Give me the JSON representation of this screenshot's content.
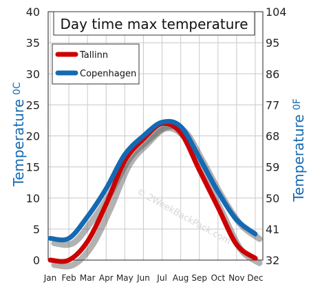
{
  "chart_data": {
    "type": "line",
    "title": "Day time max temperature",
    "categories": [
      "Jan",
      "Feb",
      "Mar",
      "Apr",
      "May",
      "Jun",
      "Jul",
      "Aug",
      "Sep",
      "Oct",
      "Nov",
      "Dec"
    ],
    "ylabel": "Temperature",
    "ylabel_unit": "0C",
    "y2label": "Temperature",
    "y2label_unit": "0F",
    "ylim": [
      0,
      40
    ],
    "y_ticks": [
      "0",
      "5",
      "10",
      "15",
      "20",
      "25",
      "30",
      "35",
      "40"
    ],
    "y2lim": [
      32,
      104
    ],
    "y2_ticks": [
      "32",
      "41",
      "50",
      "59",
      "68",
      "77",
      "86",
      "95",
      "104"
    ],
    "grid": true,
    "legend_position": "top-left",
    "series": [
      {
        "name": "Tallinn",
        "color": "#cc0000",
        "values": [
          0.0,
          0.0,
          3.0,
          9.0,
          16.0,
          19.5,
          22.0,
          20.5,
          14.5,
          8.5,
          2.5,
          0.3
        ]
      },
      {
        "name": "Copenhagen",
        "color": "#1469b3",
        "values": [
          3.5,
          3.5,
          7.0,
          11.5,
          17.0,
          20.0,
          22.2,
          21.5,
          16.5,
          11.0,
          6.5,
          4.2
        ]
      }
    ],
    "watermark": "© 2WeekBackPack.com"
  }
}
